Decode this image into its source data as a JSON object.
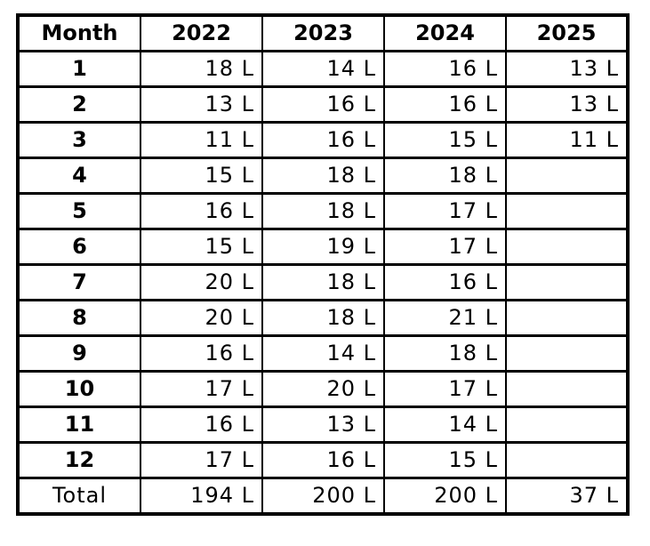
{
  "table": {
    "headers": [
      "Month",
      "2022",
      "2023",
      "2024",
      "2025"
    ],
    "rows": [
      {
        "month": "1",
        "values": [
          "18 L",
          "14 L",
          "16 L",
          "13 L"
        ]
      },
      {
        "month": "2",
        "values": [
          "13 L",
          "16 L",
          "16 L",
          "13 L"
        ]
      },
      {
        "month": "3",
        "values": [
          "11 L",
          "16 L",
          "15 L",
          "11 L"
        ]
      },
      {
        "month": "4",
        "values": [
          "15 L",
          "18 L",
          "18 L",
          ""
        ]
      },
      {
        "month": "5",
        "values": [
          "16 L",
          "18 L",
          "17 L",
          ""
        ]
      },
      {
        "month": "6",
        "values": [
          "15 L",
          "19 L",
          "17 L",
          ""
        ]
      },
      {
        "month": "7",
        "values": [
          "20 L",
          "18 L",
          "16 L",
          ""
        ]
      },
      {
        "month": "8",
        "values": [
          "20 L",
          "18 L",
          "21 L",
          ""
        ]
      },
      {
        "month": "9",
        "values": [
          "16 L",
          "14 L",
          "18 L",
          ""
        ]
      },
      {
        "month": "10",
        "values": [
          "17 L",
          "20 L",
          "17 L",
          ""
        ]
      },
      {
        "month": "11",
        "values": [
          "16 L",
          "13 L",
          "14 L",
          ""
        ]
      },
      {
        "month": "12",
        "values": [
          "17 L",
          "16 L",
          "15 L",
          ""
        ]
      }
    ],
    "total": {
      "label": "Total",
      "values": [
        "194 L",
        "200 L",
        "200 L",
        "37 L"
      ]
    }
  }
}
